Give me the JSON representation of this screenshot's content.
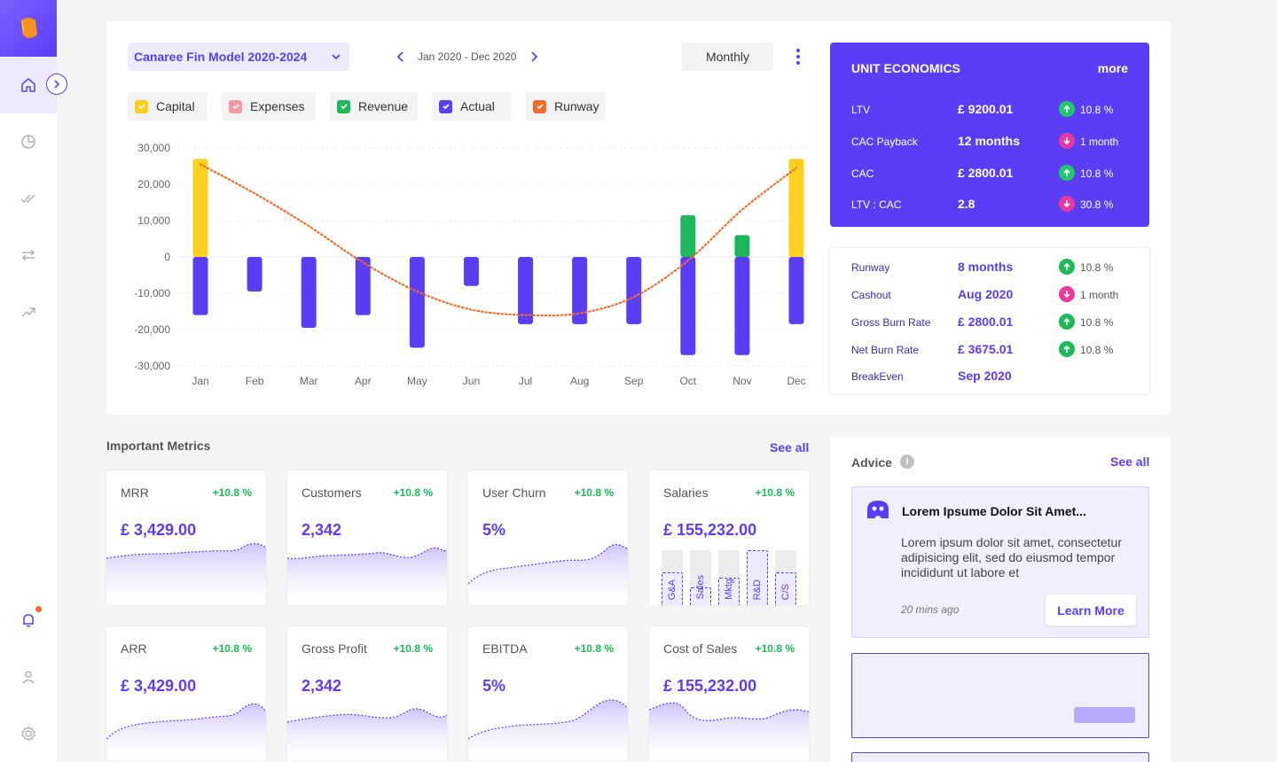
{
  "header": {
    "model_name": "Canaree Fin Model 2020-2024",
    "date_range": "Jan 2020 - Dec 2020",
    "period": "Monthly"
  },
  "legend": [
    {
      "label": "Capital",
      "color": "#fdcf1f"
    },
    {
      "label": "Expenses",
      "color": "#f39aa3"
    },
    {
      "label": "Revenue",
      "color": "#1eb85a"
    },
    {
      "label": "Actual",
      "color": "#5b3df5"
    },
    {
      "label": "Runway",
      "color": "#f26b2a"
    }
  ],
  "chart_data": {
    "type": "bar",
    "categories": [
      "Jan",
      "Feb",
      "Mar",
      "Apr",
      "May",
      "Jun",
      "Jul",
      "Aug",
      "Sep",
      "Oct",
      "Nov",
      "Dec"
    ],
    "ylim": [
      -30000,
      30000
    ],
    "yticks": [
      "30,000",
      "20,000",
      "10,000",
      "0",
      "-10,000",
      "-20,000",
      "-30,000"
    ],
    "ytick_values": [
      30000,
      20000,
      10000,
      0,
      -10000,
      -20000,
      -30000
    ],
    "series": [
      {
        "name": "Capital",
        "color": "#fdcf1f",
        "values": [
          27000,
          0,
          0,
          0,
          0,
          0,
          0,
          0,
          0,
          0,
          0,
          27000
        ]
      },
      {
        "name": "Revenue",
        "color": "#1eb85a",
        "values": [
          0,
          0,
          0,
          0,
          0,
          0,
          0,
          0,
          0,
          11500,
          6000,
          0
        ]
      },
      {
        "name": "Actual",
        "color": "#5b3df5",
        "values": [
          -16000,
          -9500,
          -19500,
          -16000,
          -25000,
          -8000,
          -18500,
          -18500,
          -18500,
          -27000,
          -27000,
          -18500
        ]
      },
      {
        "name": "Runway",
        "color": "#f26b2a",
        "type": "line",
        "values": [
          25500,
          17500,
          8500,
          -1500,
          -9500,
          -14500,
          -16000,
          -15500,
          -11000,
          -1000,
          13000,
          24500
        ]
      }
    ]
  },
  "unit_economics": {
    "title": "UNIT ECONOMICS",
    "more": "more",
    "rows": [
      {
        "label": "LTV",
        "value": "£ 9200.01",
        "change": "10.8 %",
        "dir": "up"
      },
      {
        "label": "CAC Payback",
        "value": "12 months",
        "change": "1 month",
        "dir": "down"
      },
      {
        "label": "CAC",
        "value": "£ 2800.01",
        "change": "10.8 %",
        "dir": "up"
      },
      {
        "label": "LTV : CAC",
        "value": "2.8",
        "change": "30.8 %",
        "dir": "down"
      }
    ]
  },
  "runway": {
    "rows": [
      {
        "label": "Runway",
        "value": "8 months",
        "change": "10.8 %",
        "dir": "up"
      },
      {
        "label": "Cashout",
        "value": "Aug 2020",
        "change": "1 month",
        "dir": "down"
      },
      {
        "label": "Gross Burn Rate",
        "value": "£ 2800.01",
        "change": "10.8 %",
        "dir": "up"
      },
      {
        "label": "Net Burn Rate",
        "value": "£ 3675.01",
        "change": "10.8 %",
        "dir": "up"
      },
      {
        "label": "BreakEven",
        "value": "Sep 2020",
        "change": "",
        "dir": ""
      }
    ]
  },
  "metrics": {
    "title": "Important Metrics",
    "see_all": "See all",
    "cards": [
      {
        "name": "MRR",
        "change": "+10.8 %",
        "value": "£ 3,429.00"
      },
      {
        "name": "Customers",
        "change": "+10.8 %",
        "value": "2,342"
      },
      {
        "name": "User Churn",
        "change": "+10.8 %",
        "value": "5%"
      },
      {
        "name": "Salaries",
        "change": "+10.8 %",
        "value": "£ 155,232.00"
      },
      {
        "name": "ARR",
        "change": "+10.8 %",
        "value": "£ 3,429.00"
      },
      {
        "name": "Gross Profit",
        "change": "+10.8 %",
        "value": "2,342"
      },
      {
        "name": "EBITDA",
        "change": "+10.8 %",
        "value": "5%"
      },
      {
        "name": "Cost of Sales",
        "change": "+10.8 %",
        "value": "£ 155,232.00"
      }
    ],
    "salary_bars": [
      {
        "label": "G&A",
        "fill": 0.6
      },
      {
        "label": "Sales",
        "fill": 0.33
      },
      {
        "label": "Mktg",
        "fill": 0.5
      },
      {
        "label": "R&D",
        "fill": 1.0
      },
      {
        "label": "C/S",
        "fill": 0.6
      }
    ]
  },
  "advice": {
    "title": "Advice",
    "see_all": "See all",
    "card": {
      "heading": "Lorem Ipsume Dolor Sit Amet...",
      "body": "Lorem ipsum dolor sit amet, consectetur adipisicing elit, sed do eiusmod tempor incididunt ut labore et",
      "time": "20 mins ago",
      "button": "Learn More"
    }
  },
  "colors": {
    "accent": "#5b3df5",
    "up": "#1ec96f",
    "down": "#e83a9e",
    "positive_text": "#1eb85a"
  }
}
